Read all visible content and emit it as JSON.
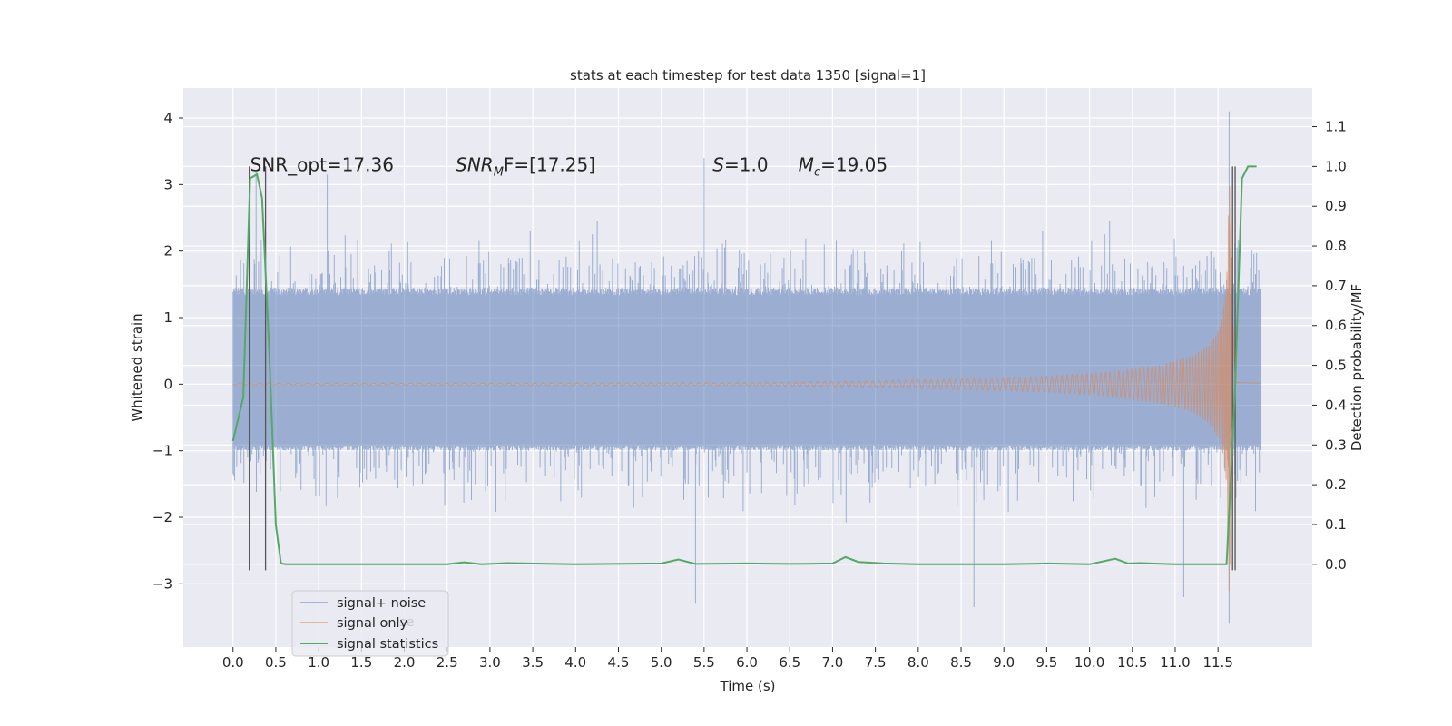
{
  "chart_data": {
    "type": "line",
    "title": "stats at each timestep for test data 1350 [signal=1]",
    "xlabel": "Time (s)",
    "ylabel": "Whitened strain",
    "ylabel_right": "Detection probability/MF",
    "xlim": [
      -0.58,
      12.6
    ],
    "ylim": [
      -3.95,
      4.45
    ],
    "ylim_right": [
      -0.208,
      1.197
    ],
    "x_ticks": [
      0.0,
      0.5,
      1.0,
      1.5,
      2.0,
      2.5,
      3.0,
      3.5,
      4.0,
      4.5,
      5.0,
      5.5,
      6.0,
      6.5,
      7.0,
      7.5,
      8.0,
      8.5,
      9.0,
      9.5,
      10.0,
      10.5,
      11.0,
      11.5
    ],
    "x_tick_labels": [
      "0.0",
      "0.5",
      "1.0",
      "1.5",
      "2.0",
      "2.5",
      "3.0",
      "3.5",
      "4.0",
      "4.5",
      "5.0",
      "5.5",
      "6.0",
      "6.5",
      "7.0",
      "7.5",
      "8.0",
      "8.5",
      "9.0",
      "9.5",
      "10.0",
      "10.5",
      "11.0",
      "11.5"
    ],
    "y_ticks": [
      -3,
      -2,
      -1,
      0,
      1,
      2,
      3,
      4
    ],
    "y_tick_labels": [
      "−3",
      "−2",
      "−1",
      "0",
      "1",
      "2",
      "3",
      "4"
    ],
    "y_ticks_right": [
      0.0,
      0.1,
      0.2,
      0.3,
      0.4,
      0.5,
      0.6,
      0.7,
      0.8,
      0.9,
      1.0,
      1.1
    ],
    "y_tick_labels_right": [
      "0.0",
      "0.1",
      "0.2",
      "0.3",
      "0.4",
      "0.5",
      "0.6",
      "0.7",
      "0.8",
      "0.9",
      "1.0",
      "1.1"
    ],
    "grid": true,
    "legend_position": "bottom-left",
    "series": [
      {
        "name": "signal+ noise",
        "color": "#4c72b0",
        "axis": "left",
        "x_range": [
          0.0,
          12.0
        ],
        "envelope": {
          "typical_range": [
            -1.0,
            1.45
          ],
          "max_spikes": 4.1,
          "min_spikes": -3.6
        },
        "notable_peaks": [
          [
            0.2,
            3.25
          ],
          [
            0.27,
            3.2
          ],
          [
            1.1,
            3.15
          ],
          [
            5.5,
            3.4
          ],
          [
            11.63,
            4.1
          ]
        ],
        "notable_troughs": [
          [
            5.4,
            -3.3
          ],
          [
            8.65,
            -3.35
          ],
          [
            11.1,
            -3.2
          ],
          [
            11.63,
            -3.6
          ]
        ]
      },
      {
        "name": "signal only",
        "color": "#dd8452",
        "axis": "left",
        "description_shape": "chirp",
        "x": [
          0.0,
          6.0,
          7.5,
          8.5,
          9.5,
          10.2,
          10.8,
          11.2,
          11.4,
          11.5,
          11.55,
          11.6,
          11.63,
          11.66,
          11.7,
          12.0
        ],
        "amplitude": [
          0.01,
          0.02,
          0.05,
          0.08,
          0.12,
          0.18,
          0.28,
          0.42,
          0.6,
          0.8,
          1.0,
          1.6,
          3.2,
          2.0,
          0.03,
          0.02
        ]
      },
      {
        "name": "signal statistics",
        "color": "#55a868",
        "axis": "right",
        "x": [
          0.0,
          0.12,
          0.2,
          0.28,
          0.34,
          0.42,
          0.5,
          0.56,
          0.62,
          0.7,
          1.0,
          2.0,
          2.5,
          2.7,
          2.9,
          3.2,
          4.0,
          5.0,
          5.2,
          5.4,
          6.0,
          6.5,
          7.0,
          7.15,
          7.3,
          7.6,
          8.0,
          9.0,
          9.5,
          10.0,
          10.3,
          10.45,
          10.6,
          11.0,
          11.6,
          11.7,
          11.78,
          11.85,
          11.95
        ],
        "y": [
          0.31,
          0.42,
          0.97,
          0.98,
          0.92,
          0.55,
          0.1,
          0.002,
          0.0,
          0.0,
          0.0,
          0.0,
          0.0,
          0.005,
          0.0,
          0.003,
          0.0,
          0.002,
          0.012,
          0.001,
          0.002,
          0.001,
          0.002,
          0.018,
          0.006,
          0.002,
          0.0,
          0.0,
          0.002,
          0.0,
          0.014,
          0.002,
          0.003,
          0.0,
          0.0,
          0.45,
          0.97,
          1.0,
          1.0
        ]
      }
    ],
    "vertical_lines": [
      {
        "x": 0.19,
        "y_range": [
          -0.015,
          1.0
        ],
        "color": "#555555"
      },
      {
        "x": 0.38,
        "y_range": [
          -0.015,
          1.0
        ],
        "color": "#555555"
      },
      {
        "x": 11.67,
        "y_range": [
          -0.015,
          1.0
        ],
        "color": "#555555"
      },
      {
        "x": 11.7,
        "y_range": [
          -0.015,
          1.0
        ],
        "color": "#555555"
      }
    ],
    "annotations": [
      {
        "text": "SNR_opt=17.36",
        "x": 0.2,
        "y": 3.3
      },
      {
        "main": "SNR",
        "sub": "M",
        "tail": "F=[17.25]",
        "x": 2.6,
        "y": 3.3
      },
      {
        "main": "S",
        "tail": "=1.0",
        "x": 5.6,
        "y": 3.3
      },
      {
        "main": "M",
        "sub": "c",
        "tail": "=19.05",
        "x": 6.6,
        "y": 3.3
      }
    ],
    "legend_overlap_text": "se"
  }
}
